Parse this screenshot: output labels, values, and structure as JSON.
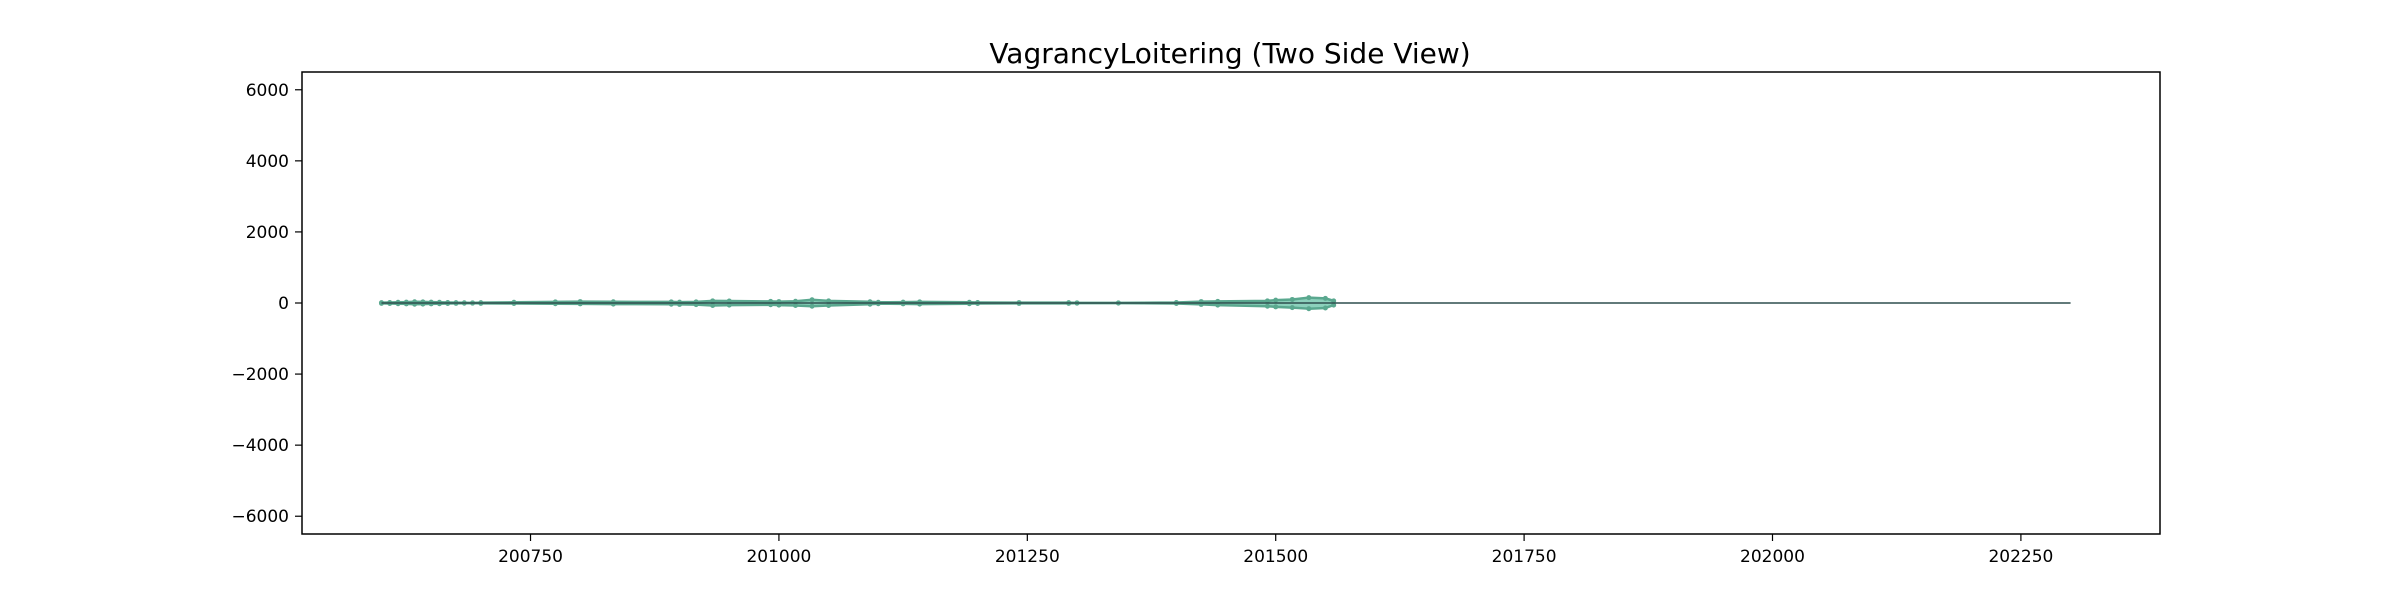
{
  "chart_data": {
    "type": "line",
    "title": "VagrancyLoitering (Two Side View)",
    "xlabel": "",
    "ylabel": "",
    "xlim": [
      200520,
      202390
    ],
    "ylim": [
      -6500,
      6500
    ],
    "x_ticks": [
      200750,
      201000,
      201250,
      201500,
      201750,
      202000,
      202250
    ],
    "x_tick_labels": [
      "200750",
      "201000",
      "201250",
      "201500",
      "201750",
      "202000",
      "202250"
    ],
    "y_ticks": [
      6000,
      4000,
      2000,
      0,
      -2000,
      -4000,
      -6000
    ],
    "y_tick_labels": [
      "6000",
      "4000",
      "2000",
      "0",
      "−2000",
      "−4000",
      "−6000"
    ],
    "grid": false,
    "legend": "none",
    "colors": {
      "series_fill": "#66c2a5",
      "series_line": "#5aa88f",
      "baseline": "#2f4f4f",
      "axes": "#000000"
    },
    "series": [
      {
        "values_upper": [
          [
            200601,
            10
          ],
          [
            200602,
            15
          ],
          [
            200603,
            20
          ],
          [
            200604,
            25
          ],
          [
            200605,
            35
          ],
          [
            200606,
            30
          ],
          [
            200607,
            25
          ],
          [
            200608,
            20
          ],
          [
            200609,
            15
          ],
          [
            200610,
            10
          ],
          [
            200611,
            8
          ],
          [
            200612,
            5
          ],
          [
            200701,
            10
          ],
          [
            200705,
            20
          ],
          [
            200710,
            30
          ],
          [
            200801,
            40
          ],
          [
            200805,
            35
          ],
          [
            200812,
            30
          ],
          [
            200901,
            25
          ],
          [
            200903,
            30
          ],
          [
            200905,
            60
          ],
          [
            200907,
            55
          ],
          [
            200912,
            45
          ],
          [
            201001,
            40
          ],
          [
            201003,
            50
          ],
          [
            201005,
            90
          ],
          [
            201007,
            60
          ],
          [
            201012,
            35
          ],
          [
            201101,
            20
          ],
          [
            201104,
            25
          ],
          [
            201106,
            30
          ],
          [
            201112,
            20
          ],
          [
            201201,
            15
          ],
          [
            201206,
            12
          ],
          [
            201212,
            10
          ],
          [
            201301,
            5
          ],
          [
            201306,
            3
          ],
          [
            201401,
            15
          ],
          [
            201404,
            40
          ],
          [
            201406,
            45
          ],
          [
            201412,
            60
          ],
          [
            201501,
            80
          ],
          [
            201503,
            100
          ],
          [
            201505,
            150
          ],
          [
            201507,
            130
          ],
          [
            201508,
            60
          ]
        ],
        "values_lower": [
          [
            200601,
            -10
          ],
          [
            200602,
            -15
          ],
          [
            200603,
            -20
          ],
          [
            200604,
            -25
          ],
          [
            200605,
            -35
          ],
          [
            200606,
            -30
          ],
          [
            200607,
            -25
          ],
          [
            200608,
            -20
          ],
          [
            200609,
            -15
          ],
          [
            200610,
            -10
          ],
          [
            200611,
            -8
          ],
          [
            200612,
            -5
          ],
          [
            200701,
            -10
          ],
          [
            200705,
            -15
          ],
          [
            200710,
            -20
          ],
          [
            200801,
            -25
          ],
          [
            200805,
            -30
          ],
          [
            200812,
            -35
          ],
          [
            200901,
            -40
          ],
          [
            200903,
            -45
          ],
          [
            200905,
            -70
          ],
          [
            200907,
            -60
          ],
          [
            200912,
            -50
          ],
          [
            201001,
            -60
          ],
          [
            201003,
            -70
          ],
          [
            201005,
            -90
          ],
          [
            201007,
            -70
          ],
          [
            201012,
            -35
          ],
          [
            201101,
            -20
          ],
          [
            201104,
            -25
          ],
          [
            201106,
            -30
          ],
          [
            201112,
            -20
          ],
          [
            201201,
            -15
          ],
          [
            201206,
            -12
          ],
          [
            201212,
            -10
          ],
          [
            201301,
            -5
          ],
          [
            201306,
            -3
          ],
          [
            201401,
            -15
          ],
          [
            201404,
            -40
          ],
          [
            201406,
            -60
          ],
          [
            201412,
            -90
          ],
          [
            201501,
            -110
          ],
          [
            201503,
            -130
          ],
          [
            201505,
            -160
          ],
          [
            201507,
            -140
          ],
          [
            201508,
            -60
          ]
        ]
      }
    ],
    "baseline": {
      "x": [
        200601,
        202301
      ],
      "y": 0
    }
  }
}
